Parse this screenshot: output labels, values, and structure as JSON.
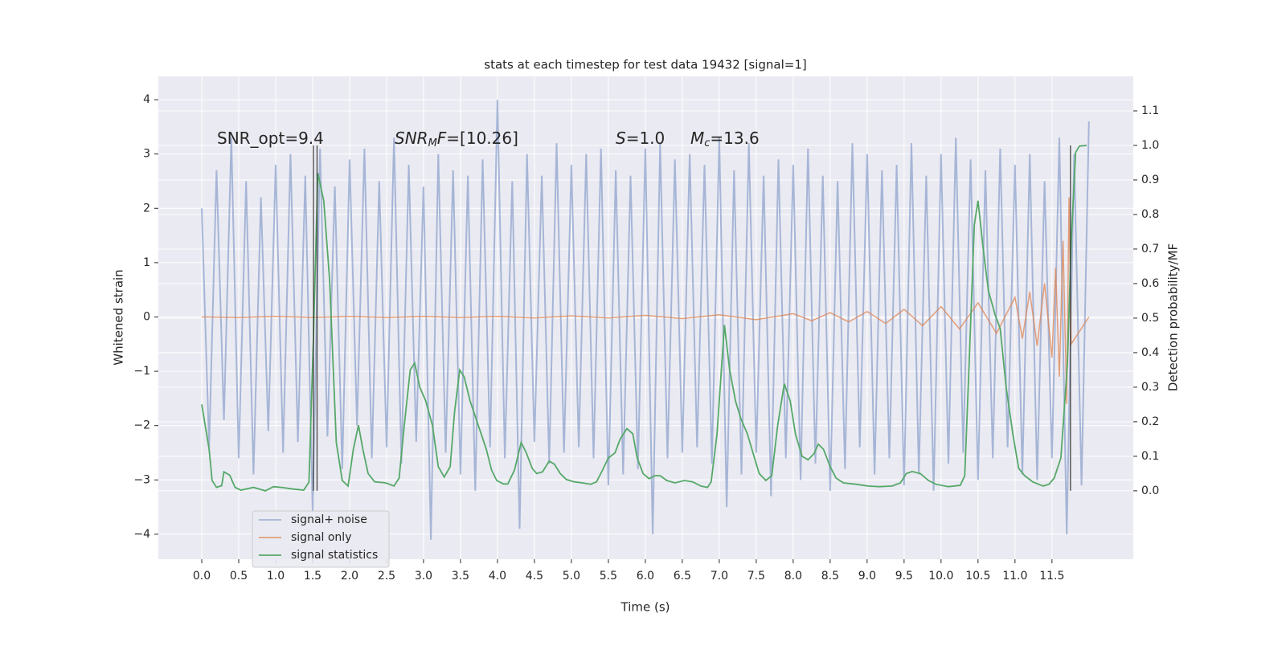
{
  "chart_data": {
    "type": "line",
    "title": "stats at each timestep for test data 19432 [signal=1]",
    "x_label": "Time (s)",
    "y_label": "Whitened strain",
    "y2_label": "Detection probability/MF",
    "grid": true,
    "legend": "lower left",
    "xlim": [
      -0.587,
      12.6
    ],
    "ylim": [
      -4.46,
      4.43
    ],
    "y2lim": [
      -0.198,
      1.2
    ],
    "xticks": [
      {
        "value": 0,
        "label": "0.0"
      },
      0.5,
      {
        "value": 1,
        "label": "1.0"
      },
      1.5,
      {
        "value": 2,
        "label": "2.0"
      },
      2.5,
      {
        "value": 3,
        "label": "3.0"
      },
      3.5,
      {
        "value": 4,
        "label": "4.0"
      },
      4.5,
      {
        "value": 5,
        "label": "5.0"
      },
      5.5,
      {
        "value": 6,
        "label": "6.0"
      },
      6.5,
      {
        "value": 7,
        "label": "7.0"
      },
      7.5,
      {
        "value": 8,
        "label": "8.0"
      },
      8.5,
      {
        "value": 9,
        "label": "9.0"
      },
      9.5,
      {
        "value": 10,
        "label": "10.0"
      },
      10.5,
      {
        "value": 11,
        "label": "11.0"
      },
      11.5
    ],
    "yticks": [
      {
        "value": -4,
        "label": "−4"
      },
      {
        "value": -3,
        "label": "−3"
      },
      {
        "value": -2,
        "label": "−2"
      },
      {
        "value": -1,
        "label": "−1"
      },
      0,
      1,
      2,
      3,
      4
    ],
    "y2ticks": [
      {
        "value": 0,
        "label": "0.0"
      },
      0.1,
      0.2,
      0.3,
      0.4,
      0.5,
      0.6,
      0.7,
      0.8,
      0.9,
      {
        "value": 1,
        "label": "1.0"
      },
      1.1
    ],
    "annotations": [
      [
        {
          "text": "SNR_opt=9.4"
        }
      ],
      [
        {
          "text": "SNR",
          "italic": true
        },
        {
          "text": "M",
          "italic": true,
          "sub": true
        },
        {
          "text": "F",
          "italic": true
        },
        {
          "text": "=[10.26]"
        }
      ],
      [
        {
          "text": "S",
          "italic": true
        },
        {
          "text": "=1.0"
        }
      ],
      [
        {
          "text": "M",
          "italic": true
        },
        {
          "text": "c",
          "italic": true,
          "sub": true
        },
        {
          "text": "=13.6"
        }
      ]
    ],
    "series": [
      {
        "name": "signal+ noise",
        "color": "#8fa3cc",
        "x": [
          0,
          0.1,
          0.2,
          0.3,
          0.4,
          0.5,
          0.6,
          0.7,
          0.8,
          0.9,
          1,
          1.1,
          1.2,
          1.3,
          1.4,
          1.5,
          1.6,
          1.7,
          1.8,
          1.9,
          2,
          2.1,
          2.2,
          2.3,
          2.4,
          2.5,
          2.6,
          2.7,
          2.8,
          2.9,
          3,
          3.1,
          3.2,
          3.3,
          3.4,
          3.5,
          3.6,
          3.7,
          3.8,
          3.9,
          4,
          4.1,
          4.2,
          4.3,
          4.4,
          4.5,
          4.6,
          4.7,
          4.8,
          4.9,
          5,
          5.1,
          5.2,
          5.3,
          5.4,
          5.5,
          5.6,
          5.7,
          5.8,
          5.9,
          6,
          6.1,
          6.2,
          6.3,
          6.4,
          6.5,
          6.6,
          6.7,
          6.8,
          6.9,
          7,
          7.1,
          7.2,
          7.3,
          7.4,
          7.5,
          7.6,
          7.7,
          7.8,
          7.9,
          8,
          8.1,
          8.2,
          8.3,
          8.4,
          8.5,
          8.6,
          8.7,
          8.8,
          8.9,
          9,
          9.1,
          9.2,
          9.3,
          9.4,
          9.5,
          9.6,
          9.7,
          9.8,
          9.9,
          10,
          10.1,
          10.2,
          10.3,
          10.4,
          10.5,
          10.6,
          10.7,
          10.8,
          10.9,
          11,
          11.1,
          11.2,
          11.3,
          11.4,
          11.5,
          11.6,
          11.7,
          11.8,
          11.9,
          12
        ],
        "values": [
          2.0,
          -2.4,
          2.7,
          -1.9,
          3.3,
          -2.6,
          2.5,
          -2.9,
          2.2,
          -2.1,
          2.8,
          -2.5,
          3.0,
          -2.3,
          2.6,
          -3.6,
          3.1,
          -2.2,
          2.4,
          -2.8,
          2.9,
          -2.0,
          3.1,
          -2.6,
          2.5,
          -2.4,
          3.3,
          -2.7,
          2.8,
          -2.3,
          2.4,
          -4.1,
          3.0,
          -2.5,
          2.7,
          -2.9,
          2.6,
          -3.2,
          2.9,
          -2.4,
          4.0,
          -2.6,
          2.5,
          -3.9,
          3.0,
          -2.3,
          2.6,
          -2.7,
          3.2,
          -2.5,
          2.8,
          -2.4,
          3.0,
          -2.6,
          3.1,
          -3.1,
          2.7,
          -2.9,
          2.6,
          -2.8,
          3.1,
          -4.0,
          3.2,
          -2.6,
          2.9,
          -2.5,
          3.0,
          -2.4,
          2.8,
          -2.7,
          3.3,
          -3.5,
          2.7,
          -2.9,
          3.2,
          -2.5,
          2.6,
          -3.3,
          2.9,
          -2.6,
          2.8,
          -3.0,
          3.1,
          -2.7,
          2.6,
          -3.2,
          2.5,
          -2.8,
          3.2,
          -2.4,
          3.0,
          -2.9,
          2.7,
          -2.6,
          2.8,
          -3.1,
          3.2,
          -2.9,
          2.6,
          -3.2,
          3.0,
          -2.7,
          3.3,
          -2.5,
          2.9,
          -3.0,
          2.7,
          -2.6,
          3.1,
          -2.4,
          2.8,
          -2.9,
          3.0,
          -3.0,
          2.5,
          -2.6,
          3.3,
          -4.0,
          3.0,
          -3.1,
          3.6
        ]
      },
      {
        "name": "signal only",
        "color": "#dd8452",
        "x": [
          0,
          0.5,
          1,
          1.5,
          2,
          2.5,
          3,
          3.5,
          4,
          4.5,
          5,
          5.5,
          6,
          6.5,
          7,
          7.5,
          8,
          8.25,
          8.5,
          8.75,
          9,
          9.25,
          9.5,
          9.75,
          10,
          10.25,
          10.5,
          10.75,
          11,
          11.1,
          11.2,
          11.3,
          11.4,
          11.5,
          11.55,
          11.6,
          11.65,
          11.7,
          11.73,
          11.76,
          12.0
        ],
        "values": [
          0,
          -0.01,
          0.01,
          -0.01,
          0.01,
          -0.01,
          0.01,
          -0.01,
          0.01,
          -0.02,
          0.02,
          -0.02,
          0.03,
          -0.03,
          0.04,
          -0.05,
          0.06,
          -0.07,
          0.08,
          -0.09,
          0.1,
          -0.12,
          0.14,
          -0.16,
          0.19,
          -0.22,
          0.26,
          -0.3,
          0.36,
          -0.4,
          0.46,
          -0.53,
          0.62,
          -0.75,
          0.9,
          -1.1,
          1.4,
          -1.6,
          2.2,
          -0.5,
          0
        ]
      },
      {
        "name": "signal statistics",
        "color": "#55a868",
        "axis": "y2",
        "x": [
          0,
          0.1,
          0.14,
          0.2,
          0.27,
          0.3,
          0.38,
          0.45,
          0.53,
          0.7,
          0.86,
          0.97,
          1.08,
          1.24,
          1.38,
          1.45,
          1.51,
          1.57,
          1.65,
          1.73,
          1.82,
          1.9,
          1.98,
          2.05,
          2.12,
          2.18,
          2.25,
          2.34,
          2.49,
          2.6,
          2.67,
          2.74,
          2.82,
          2.88,
          2.95,
          3.03,
          3.12,
          3.2,
          3.28,
          3.36,
          3.42,
          3.49,
          3.55,
          3.63,
          3.74,
          3.85,
          3.92,
          3.99,
          4.08,
          4.14,
          4.23,
          4.32,
          4.39,
          4.47,
          4.53,
          4.61,
          4.7,
          4.77,
          4.85,
          4.93,
          5.04,
          5.15,
          5.26,
          5.34,
          5.42,
          5.5,
          5.59,
          5.66,
          5.75,
          5.83,
          5.89,
          5.97,
          6.05,
          6.13,
          6.2,
          6.29,
          6.4,
          6.53,
          6.64,
          6.75,
          6.84,
          6.89,
          6.97,
          7.07,
          7.14,
          7.22,
          7.29,
          7.38,
          7.46,
          7.54,
          7.63,
          7.71,
          7.79,
          7.88,
          7.96,
          8.03,
          8.12,
          8.2,
          8.28,
          8.34,
          8.41,
          8.5,
          8.58,
          8.68,
          8.85,
          9.01,
          9.17,
          9.34,
          9.45,
          9.53,
          9.61,
          9.72,
          9.83,
          9.93,
          10.1,
          10.26,
          10.32,
          10.38,
          10.45,
          10.5,
          10.57,
          10.64,
          10.73,
          10.8,
          10.88,
          10.97,
          11.05,
          11.13,
          11.24,
          11.38,
          11.46,
          11.53,
          11.62,
          11.71,
          11.76,
          11.82,
          11.87,
          11.97
        ],
        "values": [
          0.25,
          0.12,
          0.03,
          0.01,
          0.015,
          0.055,
          0.045,
          0.01,
          0.002,
          0.01,
          0.0,
          0.012,
          0.01,
          0.005,
          0.002,
          0.025,
          0.44,
          0.92,
          0.84,
          0.61,
          0.14,
          0.03,
          0.014,
          0.12,
          0.19,
          0.12,
          0.05,
          0.026,
          0.023,
          0.014,
          0.037,
          0.19,
          0.35,
          0.37,
          0.3,
          0.26,
          0.19,
          0.07,
          0.04,
          0.07,
          0.23,
          0.35,
          0.33,
          0.26,
          0.19,
          0.12,
          0.06,
          0.03,
          0.02,
          0.02,
          0.06,
          0.14,
          0.11,
          0.065,
          0.05,
          0.055,
          0.086,
          0.077,
          0.05,
          0.033,
          0.026,
          0.023,
          0.019,
          0.026,
          0.06,
          0.095,
          0.11,
          0.15,
          0.18,
          0.165,
          0.095,
          0.05,
          0.035,
          0.044,
          0.044,
          0.03,
          0.023,
          0.03,
          0.026,
          0.014,
          0.01,
          0.026,
          0.165,
          0.48,
          0.35,
          0.26,
          0.21,
          0.165,
          0.107,
          0.05,
          0.03,
          0.044,
          0.19,
          0.31,
          0.26,
          0.165,
          0.1,
          0.09,
          0.107,
          0.135,
          0.12,
          0.07,
          0.037,
          0.023,
          0.019,
          0.014,
          0.012,
          0.014,
          0.023,
          0.05,
          0.056,
          0.05,
          0.03,
          0.019,
          0.012,
          0.016,
          0.044,
          0.37,
          0.77,
          0.84,
          0.7,
          0.58,
          0.51,
          0.47,
          0.3,
          0.165,
          0.065,
          0.044,
          0.026,
          0.014,
          0.019,
          0.037,
          0.095,
          0.37,
          0.72,
          0.98,
          0.998,
          1.0
        ]
      }
    ],
    "detections": {
      "color": "#333333",
      "x": [
        1.51,
        1.56,
        11.75
      ],
      "values": [
        1,
        1,
        1
      ]
    }
  }
}
